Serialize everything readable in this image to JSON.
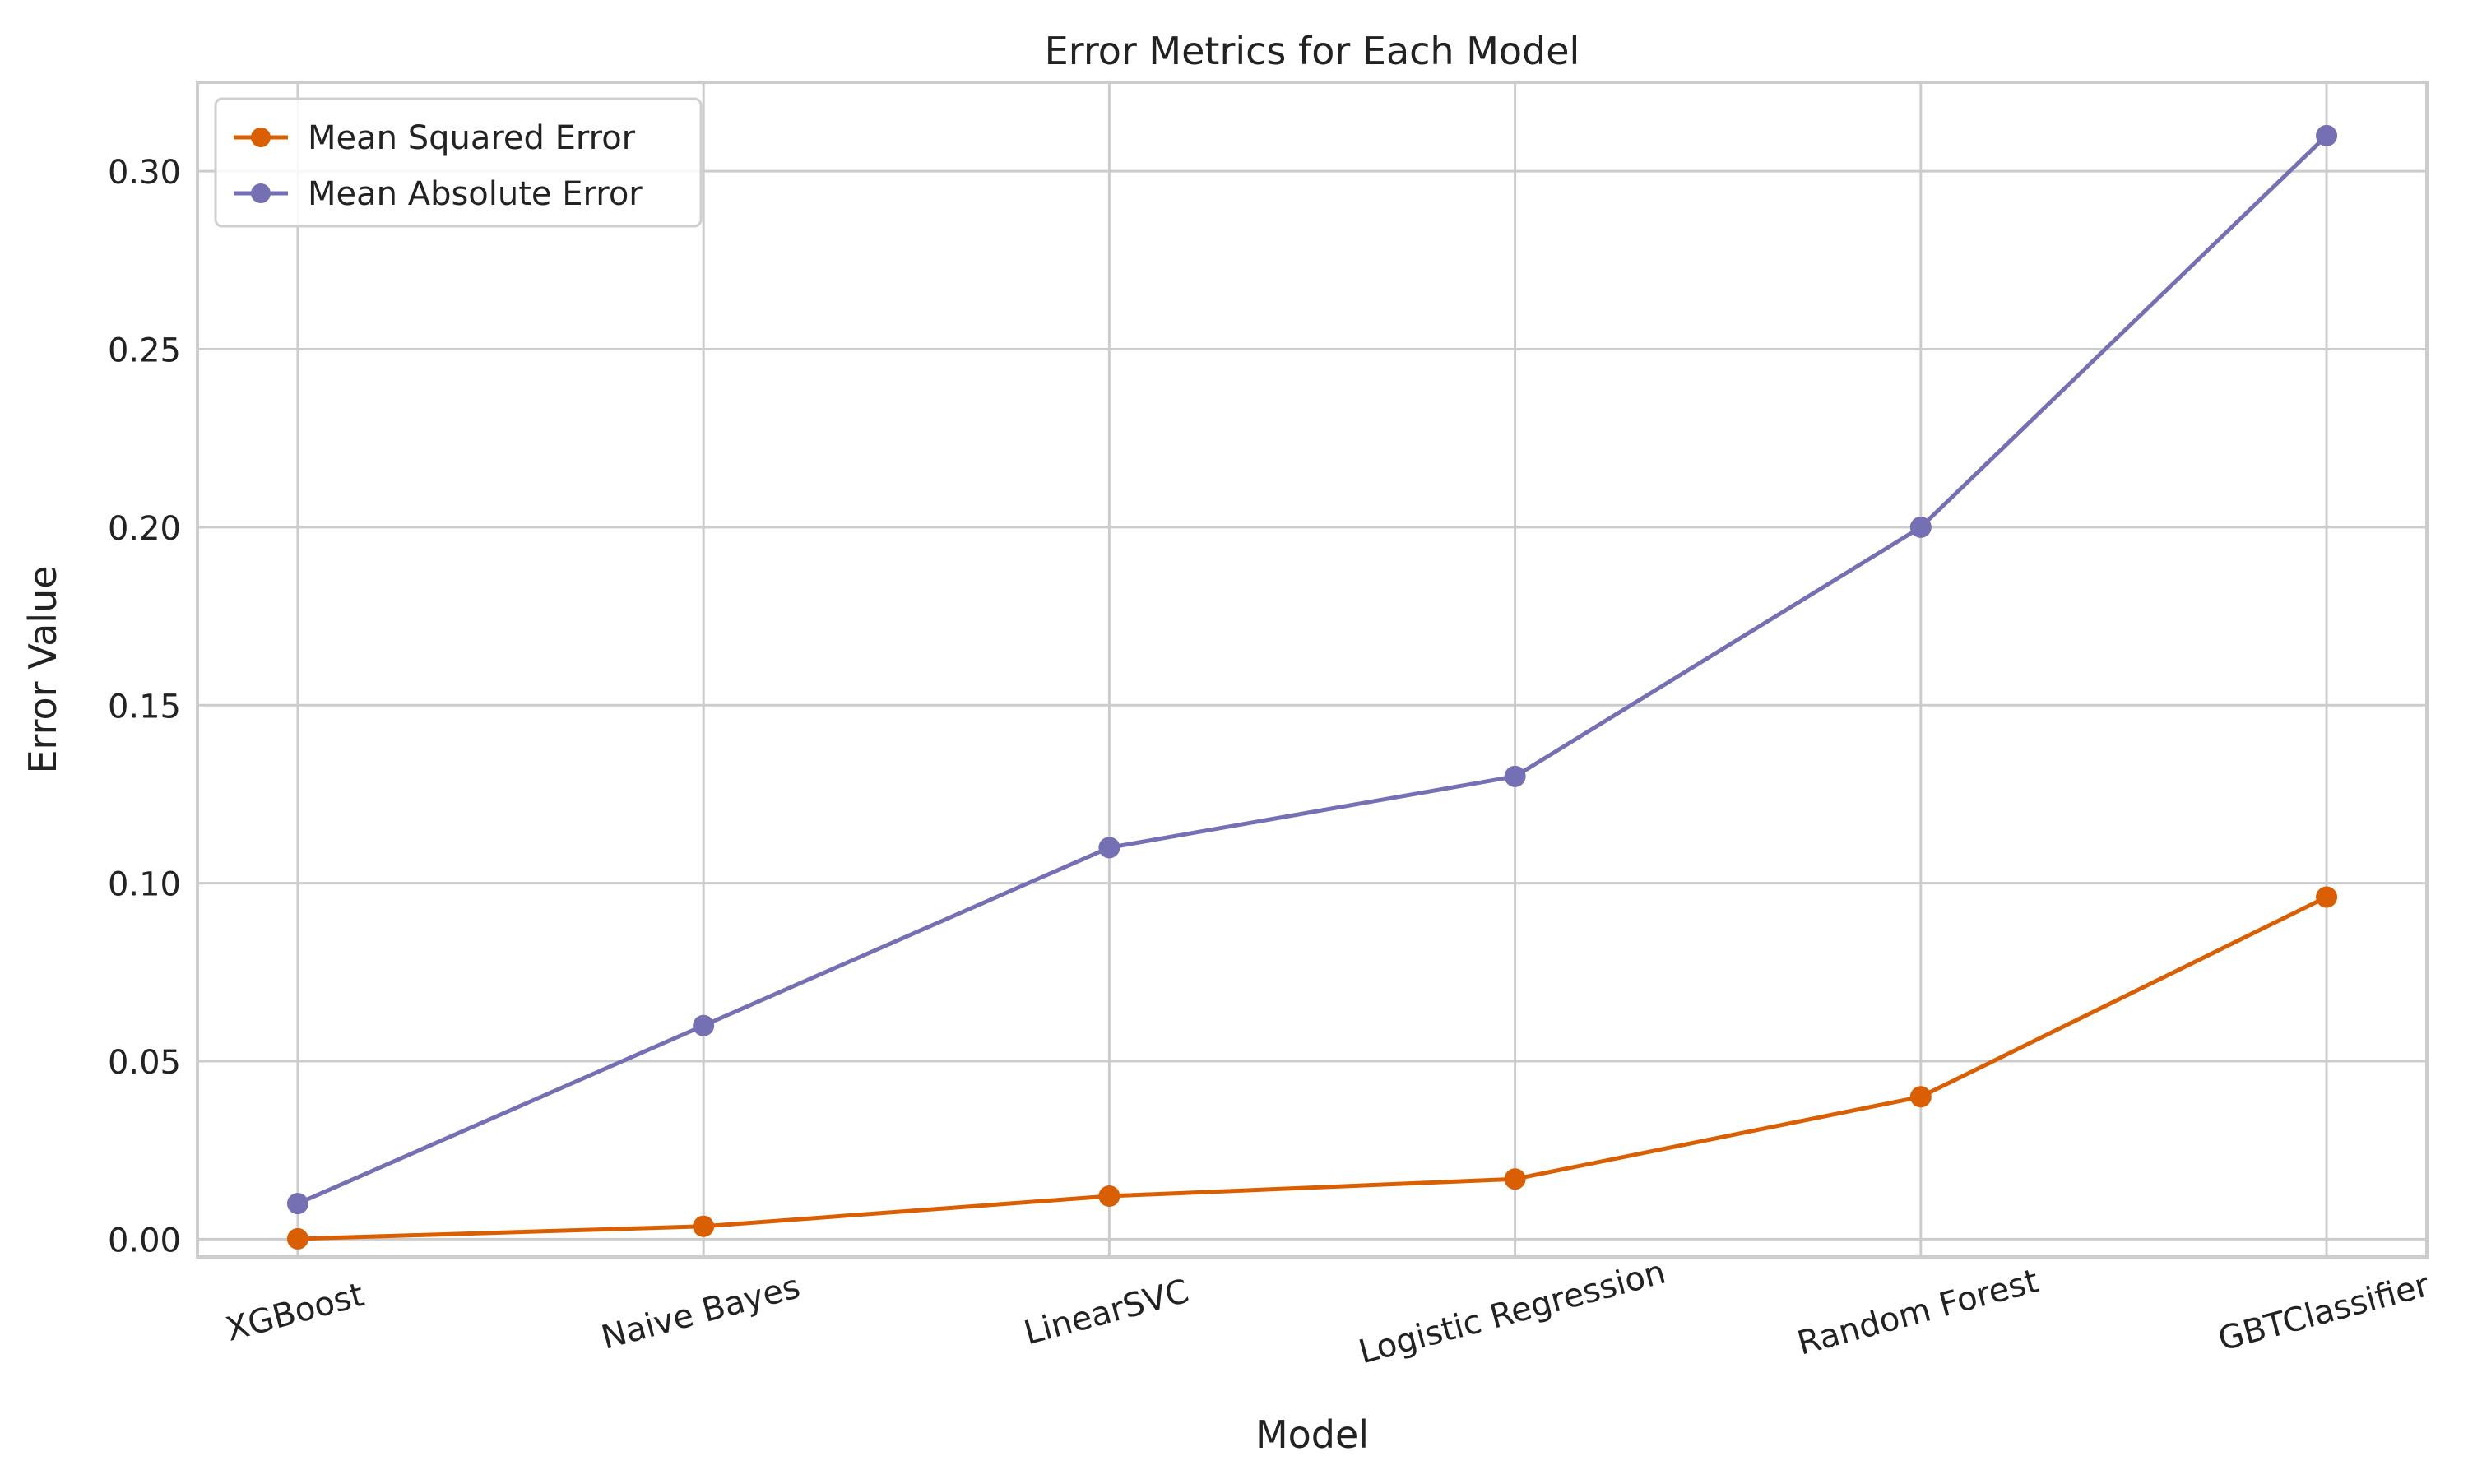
{
  "chart_data": {
    "type": "line",
    "title": "Error Metrics for Each Model",
    "xlabel": "Model",
    "ylabel": "Error Value",
    "categories": [
      "XGBoost",
      "Naive Bayes",
      "LinearSVC",
      "Logistic Regression",
      "Random Forest",
      "GBTClassifier"
    ],
    "series": [
      {
        "name": "Mean Squared Error",
        "color": "#d95f02",
        "values": [
          0.0001,
          0.0036,
          0.0121,
          0.0169,
          0.04,
          0.0961
        ]
      },
      {
        "name": "Mean Absolute Error",
        "color": "#7570b3",
        "values": [
          0.01,
          0.06,
          0.11,
          0.13,
          0.2,
          0.31
        ]
      }
    ],
    "yticks": [
      "0.00",
      "0.05",
      "0.10",
      "0.15",
      "0.20",
      "0.25",
      "0.30"
    ],
    "ylim": [
      -0.005,
      0.325
    ],
    "grid": true,
    "legend_position": "top-left",
    "x_tick_rotation": "-15deg"
  }
}
